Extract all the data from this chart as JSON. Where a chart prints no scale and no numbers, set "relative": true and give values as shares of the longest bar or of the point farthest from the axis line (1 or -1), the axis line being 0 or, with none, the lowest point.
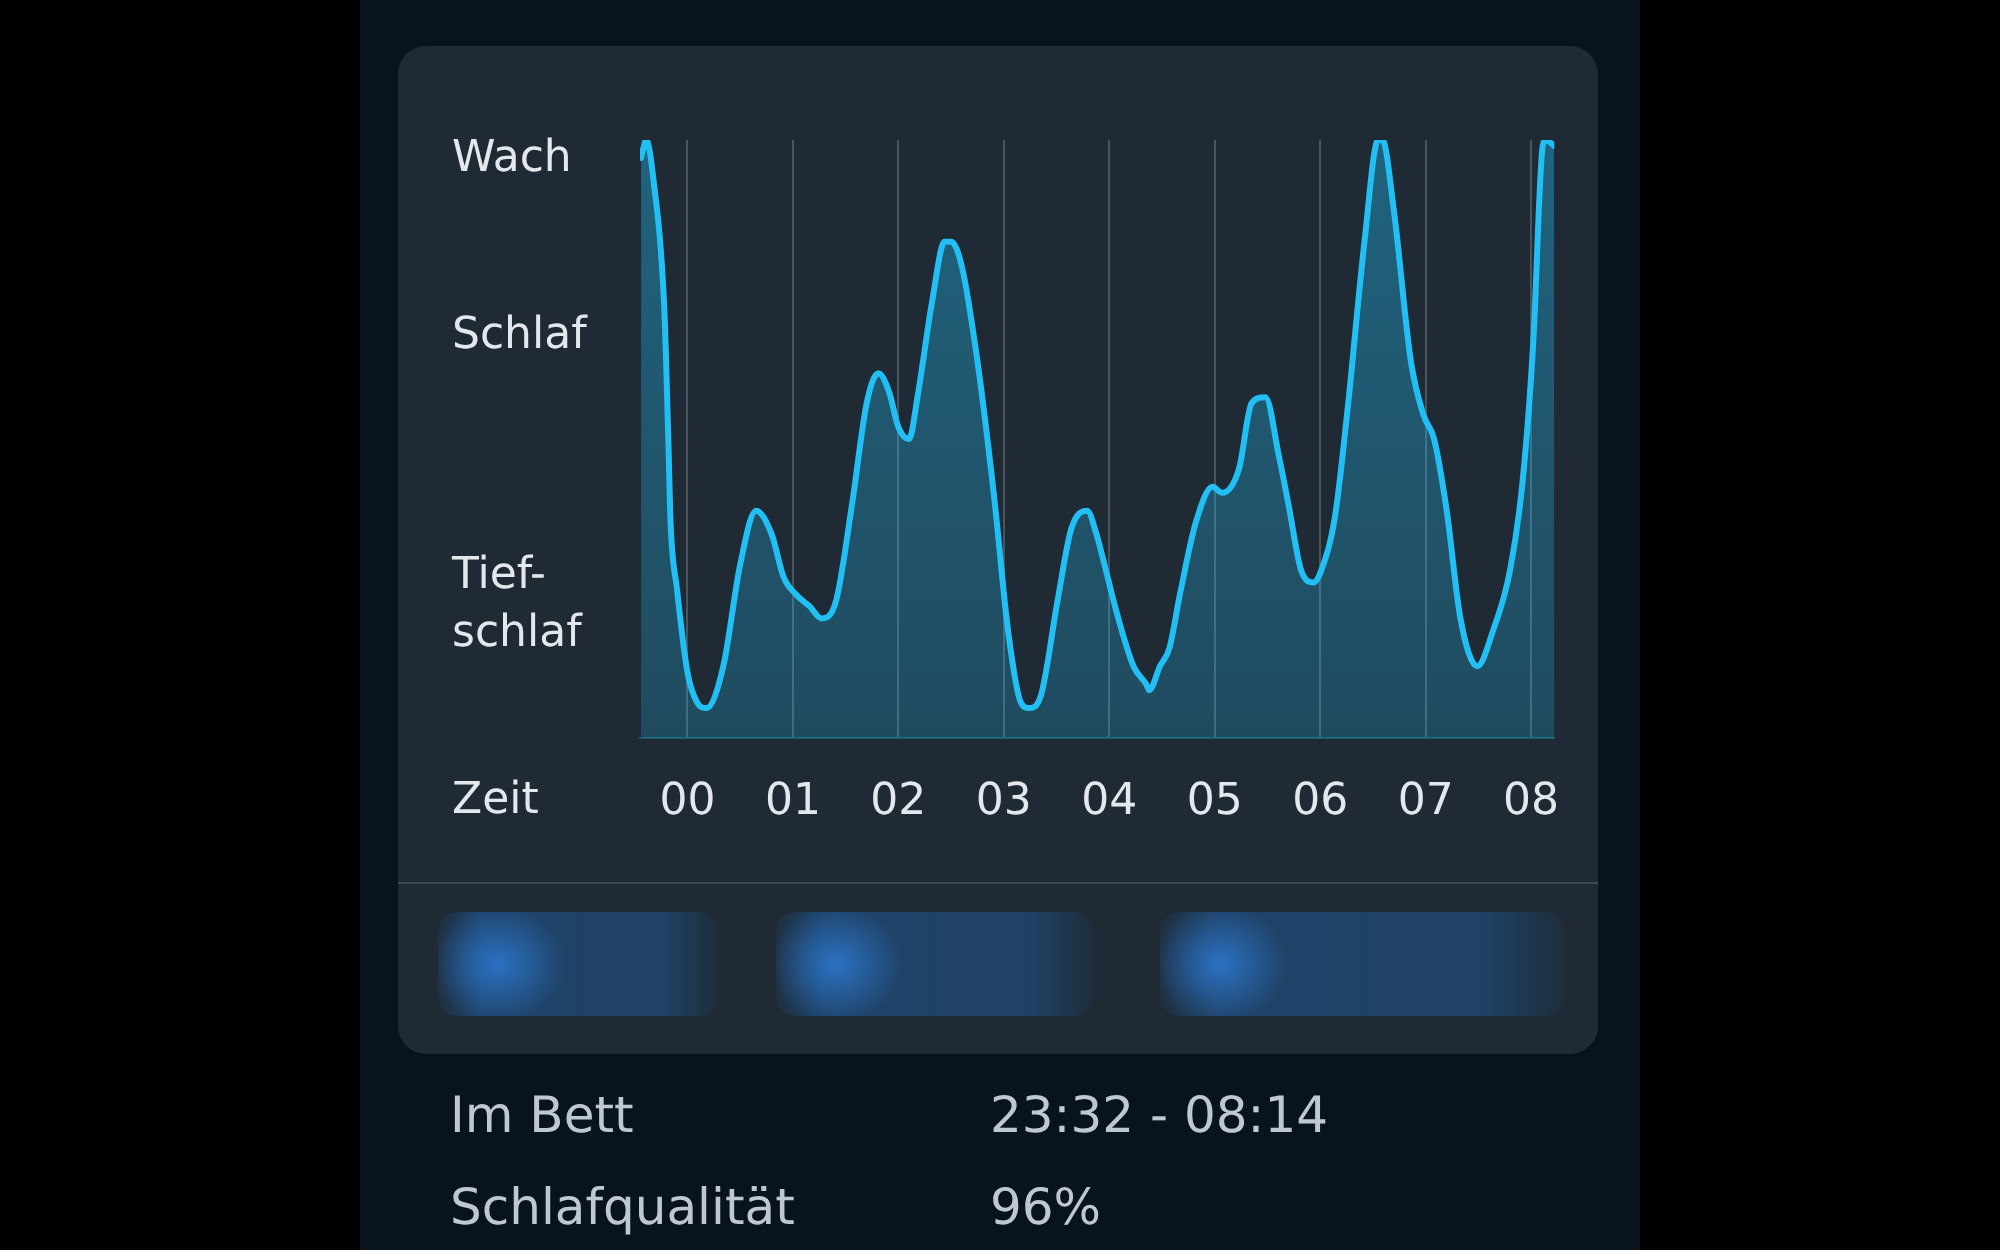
{
  "chart_data": {
    "type": "area",
    "xlabel": "Zeit",
    "relative": true,
    "x": [
      -0.44,
      -0.39,
      -0.32,
      -0.22,
      -0.18,
      -0.16,
      -0.1,
      0.0,
      0.09,
      0.18,
      0.34,
      0.5,
      0.65,
      0.8,
      0.91,
      1.03,
      1.16,
      1.27,
      1.41,
      1.56,
      1.7,
      1.81,
      1.91,
      2.0,
      2.1,
      2.19,
      2.32,
      2.44,
      2.5,
      2.6,
      2.75,
      2.91,
      3.04,
      3.16,
      3.24,
      3.35,
      3.51,
      3.64,
      3.79,
      3.88,
      3.94,
      4.07,
      4.23,
      4.35,
      4.38,
      4.48,
      4.57,
      4.67,
      4.82,
      4.98,
      5.07,
      5.23,
      5.35,
      5.48,
      5.61,
      5.7,
      5.82,
      5.94,
      6.01,
      6.14,
      6.26,
      6.42,
      6.55,
      6.59,
      6.7,
      6.86,
      6.98,
      7.08,
      7.2,
      7.33,
      7.49,
      7.64,
      7.8,
      7.92,
      8.02,
      8.11,
      8.14,
      8.22
    ],
    "values": [
      0.97,
      1.0,
      0.93,
      0.72,
      0.49,
      0.36,
      0.25,
      0.11,
      0.06,
      0.05,
      0.12,
      0.29,
      0.38,
      0.34,
      0.27,
      0.24,
      0.22,
      0.2,
      0.23,
      0.39,
      0.56,
      0.61,
      0.58,
      0.52,
      0.5,
      0.58,
      0.73,
      0.83,
      0.83,
      0.79,
      0.63,
      0.4,
      0.18,
      0.06,
      0.05,
      0.07,
      0.23,
      0.35,
      0.38,
      0.34,
      0.3,
      0.21,
      0.12,
      0.09,
      0.08,
      0.12,
      0.15,
      0.24,
      0.36,
      0.42,
      0.41,
      0.45,
      0.56,
      0.57,
      0.47,
      0.39,
      0.28,
      0.26,
      0.28,
      0.37,
      0.55,
      0.83,
      1.0,
      1.0,
      0.88,
      0.63,
      0.54,
      0.5,
      0.38,
      0.2,
      0.12,
      0.18,
      0.28,
      0.43,
      0.66,
      0.99,
      1.0,
      0.99
    ],
    "color": "#22bff5",
    "xlim": [
      -0.45,
      8.22
    ],
    "xticks": [
      {
        "value": 0,
        "label": "00"
      },
      {
        "value": 1,
        "label": "01"
      },
      {
        "value": 2,
        "label": "02"
      },
      {
        "value": 3,
        "label": "03"
      },
      {
        "value": 4,
        "label": "04"
      },
      {
        "value": 5,
        "label": "05"
      },
      {
        "value": 6,
        "label": "06"
      },
      {
        "value": 7,
        "label": "07"
      },
      {
        "value": 8,
        "label": "08"
      }
    ],
    "grid": "x",
    "annotations": [
      "Wach",
      "Schlaf",
      "Tief-schlaf",
      "Im Bett",
      "23:32 - 08:14",
      "Schlafqualität",
      "96%"
    ]
  }
}
